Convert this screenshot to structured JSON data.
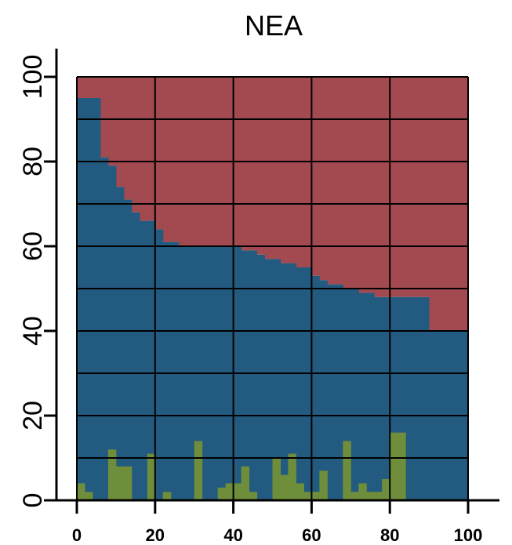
{
  "chart_data": {
    "type": "bar",
    "title": "NEA",
    "xlabel": "",
    "ylabel": "",
    "xlim": [
      0,
      100
    ],
    "ylim": [
      0,
      100
    ],
    "x_ticks": [
      0,
      20,
      40,
      60,
      80,
      100
    ],
    "y_ticks": [
      0,
      20,
      40,
      60,
      80,
      100
    ],
    "grid": true,
    "legend": "none",
    "bin_width": 2,
    "colors": {
      "top": "#a24a4f",
      "middle": "#235a80",
      "bottom": "#6e8e3b",
      "grid": "#000000"
    },
    "series": [
      {
        "name": "",
        "color": "#235a80",
        "x_start": [
          0,
          2,
          4,
          6,
          8,
          10,
          12,
          14,
          16,
          18,
          20,
          22,
          24,
          26,
          28,
          30,
          32,
          34,
          36,
          38,
          40,
          42,
          44,
          46,
          48,
          50,
          52,
          54,
          56,
          58,
          60,
          62,
          64,
          66,
          68,
          70,
          72,
          74,
          76,
          78,
          80,
          82,
          84,
          86,
          88,
          90,
          92,
          94,
          96,
          98
        ],
        "values": [
          95,
          95,
          95,
          81,
          79,
          74,
          71,
          68,
          66,
          66,
          64,
          61,
          61,
          60,
          60,
          60,
          60,
          60,
          60,
          60,
          60,
          59,
          59,
          58,
          57,
          57,
          56,
          56,
          55,
          55,
          53,
          52,
          51,
          51,
          50,
          50,
          49,
          49,
          48,
          48,
          48,
          48,
          48,
          48,
          48,
          40,
          40,
          40,
          40,
          40
        ]
      },
      {
        "name": "",
        "color": "#6e8e3b",
        "x_start": [
          0,
          2,
          4,
          6,
          8,
          10,
          12,
          14,
          16,
          18,
          20,
          22,
          24,
          26,
          28,
          30,
          32,
          34,
          36,
          38,
          40,
          42,
          44,
          46,
          48,
          50,
          52,
          54,
          56,
          58,
          60,
          62,
          64,
          66,
          68,
          70,
          72,
          74,
          76,
          78,
          80,
          82,
          84,
          86,
          88,
          90,
          92,
          94,
          96,
          98
        ],
        "values": [
          4,
          2,
          0,
          0,
          12,
          8,
          8,
          0,
          0,
          11,
          0,
          2,
          0,
          0,
          0,
          14,
          0,
          0,
          3,
          4,
          4,
          8,
          2,
          0,
          0,
          10,
          6,
          11,
          4,
          2,
          2,
          7,
          0,
          0,
          14,
          2,
          4,
          2,
          2,
          5,
          16,
          16,
          0,
          0,
          0,
          0,
          0,
          0,
          0,
          0
        ]
      }
    ]
  }
}
